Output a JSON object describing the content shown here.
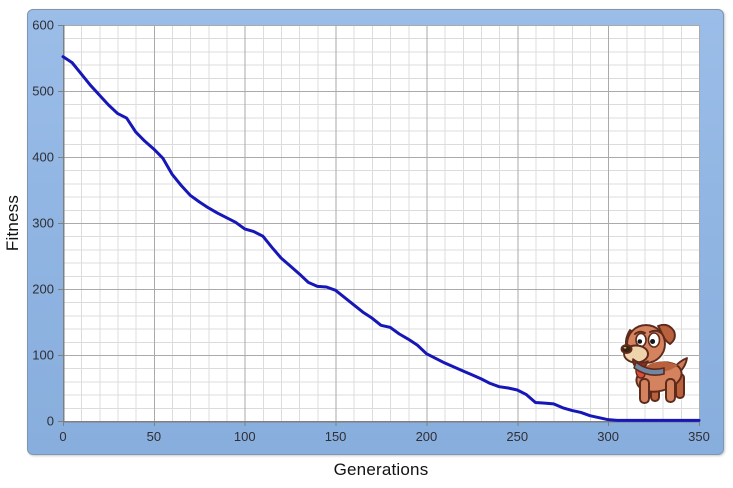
{
  "figure": {
    "background": "#ffffff",
    "panel_color": "#8fb4e2",
    "panel_border_color": "#8096ad"
  },
  "chart_data": {
    "type": "line",
    "title": "",
    "xlabel": "Generations",
    "ylabel": "Fitness",
    "xlim": [
      0,
      350
    ],
    "ylim": [
      0,
      600
    ],
    "x_major": 50,
    "x_minor": 10,
    "y_major": 100,
    "y_minor": 20,
    "grid": true,
    "legend": "none",
    "x_ticks": [
      "0",
      "50",
      "100",
      "150",
      "200",
      "250",
      "300",
      "350"
    ],
    "y_ticks": [
      "0",
      "100",
      "200",
      "300",
      "400",
      "500",
      "600"
    ],
    "x": [
      0,
      5,
      10,
      15,
      20,
      25,
      30,
      35,
      40,
      45,
      50,
      55,
      60,
      65,
      70,
      75,
      80,
      85,
      90,
      95,
      100,
      105,
      110,
      115,
      120,
      125,
      130,
      135,
      140,
      145,
      150,
      155,
      160,
      165,
      170,
      175,
      180,
      185,
      190,
      195,
      200,
      205,
      210,
      215,
      220,
      225,
      230,
      235,
      240,
      245,
      250,
      255,
      260,
      265,
      270,
      275,
      280,
      285,
      290,
      295,
      300,
      305,
      310,
      315,
      320,
      325,
      330,
      335,
      340,
      345,
      350
    ],
    "series": [
      {
        "name": "Fitness",
        "color": "#1717b8",
        "values": [
          552,
          543,
          526,
          509,
          494,
          479,
          466,
          459,
          438,
          424,
          412,
          398,
          374,
          357,
          342,
          332,
          323,
          315,
          308,
          301,
          291,
          287,
          280,
          263,
          247,
          235,
          223,
          210,
          204,
          203,
          198,
          187,
          176,
          165,
          156,
          145,
          142,
          132,
          124,
          115,
          102,
          95,
          88,
          82,
          76,
          70,
          64,
          57,
          52,
          50,
          47,
          40,
          28,
          27,
          26,
          20,
          16,
          13,
          8,
          5,
          2,
          1,
          1,
          1,
          1,
          1,
          1,
          1,
          1,
          1,
          1
        ]
      }
    ],
    "colors": {
      "minor_grid": "#dcdcdc",
      "major_grid": "#aaaaaa",
      "axis": "#7f7f7f",
      "tick_label": "#2f2f35",
      "plot_background": "#ffffff"
    },
    "tick_font_px": 13
  },
  "decoration": {
    "dog_sticker": "cartoon brown puppy with floppy ears and tongue out, standing near bottom-right of plot"
  }
}
